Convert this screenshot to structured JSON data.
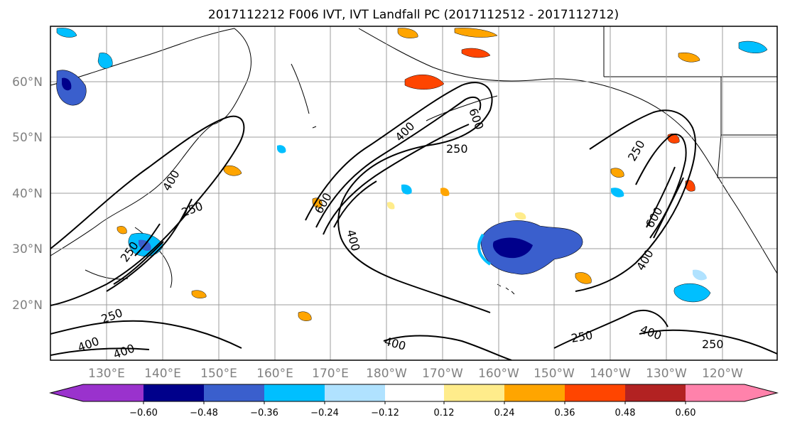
{
  "title": "2017112212 F006 IVT, IVT Landfall PC (2017112512 - 2017112712)",
  "map": {
    "lat_labels": [
      "60°N",
      "50°N",
      "40°N",
      "30°N",
      "20°N"
    ],
    "lon_labels": [
      "130°E",
      "140°E",
      "150°E",
      "160°E",
      "170°E",
      "180°W",
      "170°W",
      "160°W",
      "150°W",
      "140°W",
      "130°W",
      "120°W"
    ],
    "contour_labels": [
      "600",
      "250",
      "400",
      "600",
      "250",
      "400",
      "250",
      "600",
      "400",
      "250",
      "400",
      "250",
      "400",
      "400",
      "250",
      "400",
      "250",
      "400"
    ]
  },
  "colorbar": {
    "ticks": [
      "−0.60",
      "−0.48",
      "−0.36",
      "−0.24",
      "−0.12",
      "0.12",
      "0.24",
      "0.36",
      "0.48",
      "0.60"
    ],
    "colors": [
      "#9a32cd",
      "#00008b",
      "#3a5fcd",
      "#00bfff",
      "#b0e2ff",
      "#ffffff",
      "#ffec8b",
      "#ffa500",
      "#ff4500",
      "#b22222",
      "#ff82ab"
    ]
  }
}
